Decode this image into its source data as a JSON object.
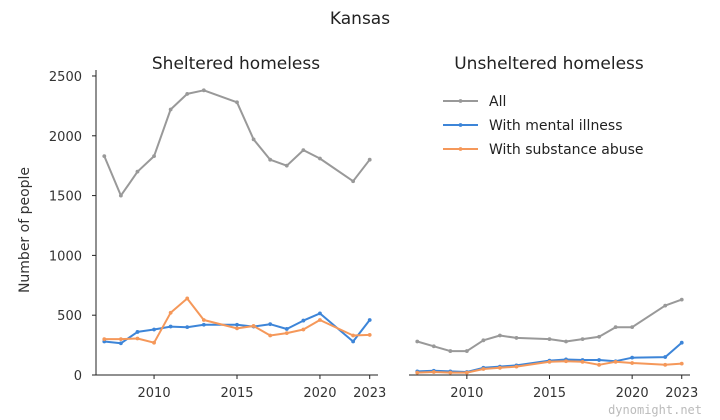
{
  "chart_data": {
    "type": "line",
    "suptitle": "Kansas",
    "ylabel": "Number of people",
    "xlim": [
      2006.5,
      2023.5
    ],
    "ylim": [
      0,
      2550
    ],
    "yticks": [
      0,
      500,
      1000,
      1500,
      2000,
      2500
    ],
    "xticks": [
      2010,
      2015,
      2020,
      2023
    ],
    "legend_location": "upper right of second panel",
    "grid": false,
    "colors": {
      "All": "#999999",
      "With mental illness": "#3d85d8",
      "With substance abuse": "#f5985a"
    },
    "panels": [
      {
        "title": "Sheltered homeless",
        "series": [
          {
            "name": "All",
            "x": [
              2007,
              2008,
              2009,
              2010,
              2011,
              2012,
              2013,
              2015,
              2016,
              2017,
              2018,
              2019,
              2020,
              2022,
              2023
            ],
            "values": [
              1830,
              1500,
              1700,
              1830,
              2220,
              2350,
              2380,
              2280,
              1970,
              1800,
              1750,
              1880,
              1810,
              1620,
              1800
            ]
          },
          {
            "name": "With mental illness",
            "x": [
              2007,
              2008,
              2009,
              2010,
              2011,
              2012,
              2013,
              2015,
              2016,
              2017,
              2018,
              2019,
              2020,
              2022,
              2023
            ],
            "values": [
              280,
              265,
              360,
              380,
              405,
              400,
              420,
              420,
              405,
              425,
              385,
              455,
              515,
              280,
              460
            ]
          },
          {
            "name": "With substance abuse",
            "x": [
              2007,
              2008,
              2009,
              2010,
              2011,
              2012,
              2013,
              2015,
              2016,
              2017,
              2018,
              2019,
              2020,
              2022,
              2023
            ],
            "values": [
              300,
              300,
              305,
              270,
              520,
              640,
              460,
              390,
              410,
              330,
              350,
              380,
              460,
              330,
              335
            ]
          }
        ]
      },
      {
        "title": "Unsheltered homeless",
        "series": [
          {
            "name": "All",
            "x": [
              2007,
              2008,
              2009,
              2010,
              2011,
              2012,
              2013,
              2015,
              2016,
              2017,
              2018,
              2019,
              2020,
              2022,
              2023
            ],
            "values": [
              280,
              240,
              200,
              200,
              290,
              330,
              310,
              300,
              280,
              300,
              320,
              400,
              400,
              580,
              630
            ]
          },
          {
            "name": "With mental illness",
            "x": [
              2007,
              2008,
              2009,
              2010,
              2011,
              2012,
              2013,
              2015,
              2016,
              2017,
              2018,
              2019,
              2020,
              2022,
              2023
            ],
            "values": [
              30,
              35,
              30,
              25,
              60,
              70,
              80,
              120,
              130,
              125,
              125,
              115,
              145,
              150,
              270
            ]
          },
          {
            "name": "With substance abuse",
            "x": [
              2007,
              2008,
              2009,
              2010,
              2011,
              2012,
              2013,
              2015,
              2016,
              2017,
              2018,
              2019,
              2020,
              2022,
              2023
            ],
            "values": [
              20,
              25,
              20,
              20,
              50,
              60,
              70,
              110,
              115,
              110,
              85,
              110,
              100,
              85,
              95
            ]
          }
        ]
      }
    ]
  },
  "watermark": "dynomight.net"
}
